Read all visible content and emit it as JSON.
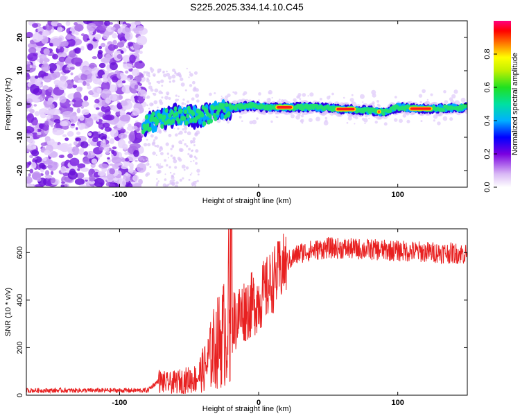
{
  "title": "S225.2025.334.14.10.C45",
  "chart_data": [
    {
      "type": "heatmap",
      "name": "spectrogram",
      "xlabel": "Height of straight line (km)",
      "ylabel": "Frequency (Hz)",
      "xlim": [
        -167,
        150
      ],
      "ylim": [
        -25,
        25
      ],
      "x_ticks": [
        -100,
        0,
        100
      ],
      "y_ticks": [
        20,
        10,
        0,
        -10,
        -20
      ],
      "colorbar": {
        "label": "Normalized spectral amplitude",
        "range": [
          0,
          1
        ],
        "ticks": [
          0.0,
          0.2,
          0.4,
          0.6,
          0.8
        ]
      },
      "ridge": {
        "description_x": [
          -83,
          -75,
          -65,
          -55,
          -45,
          -35,
          -25,
          -15,
          -5,
          5,
          20,
          40,
          60,
          80,
          90,
          100,
          120,
          150
        ],
        "frequency_y": [
          -7,
          -5,
          -4,
          -3,
          -4,
          -3,
          -1.5,
          -1,
          -0.5,
          -1,
          -1,
          -1,
          -1.5,
          -2,
          -2.5,
          -1,
          -1.5,
          -1
        ]
      }
    },
    {
      "type": "line",
      "name": "snr",
      "xlabel": "Height of straight line (km)",
      "ylabel": "SNR (10 * v/v)",
      "xlim": [
        -167,
        150
      ],
      "ylim": [
        0,
        700
      ],
      "x_ticks": [
        -100,
        0,
        100
      ],
      "y_ticks": [
        0,
        200,
        400,
        600
      ],
      "color": "#e82020",
      "envelope_x": [
        -167,
        -80,
        -72,
        -65,
        -55,
        -45,
        -38,
        -32,
        -25,
        -20,
        -15,
        -10,
        -5,
        0,
        5,
        10,
        15,
        20,
        30,
        50,
        70,
        90,
        110,
        130,
        150
      ],
      "envelope_y": [
        20,
        20,
        60,
        50,
        60,
        70,
        120,
        200,
        260,
        300,
        330,
        360,
        380,
        400,
        440,
        480,
        520,
        560,
        600,
        620,
        615,
        610,
        605,
        600,
        595
      ]
    }
  ]
}
